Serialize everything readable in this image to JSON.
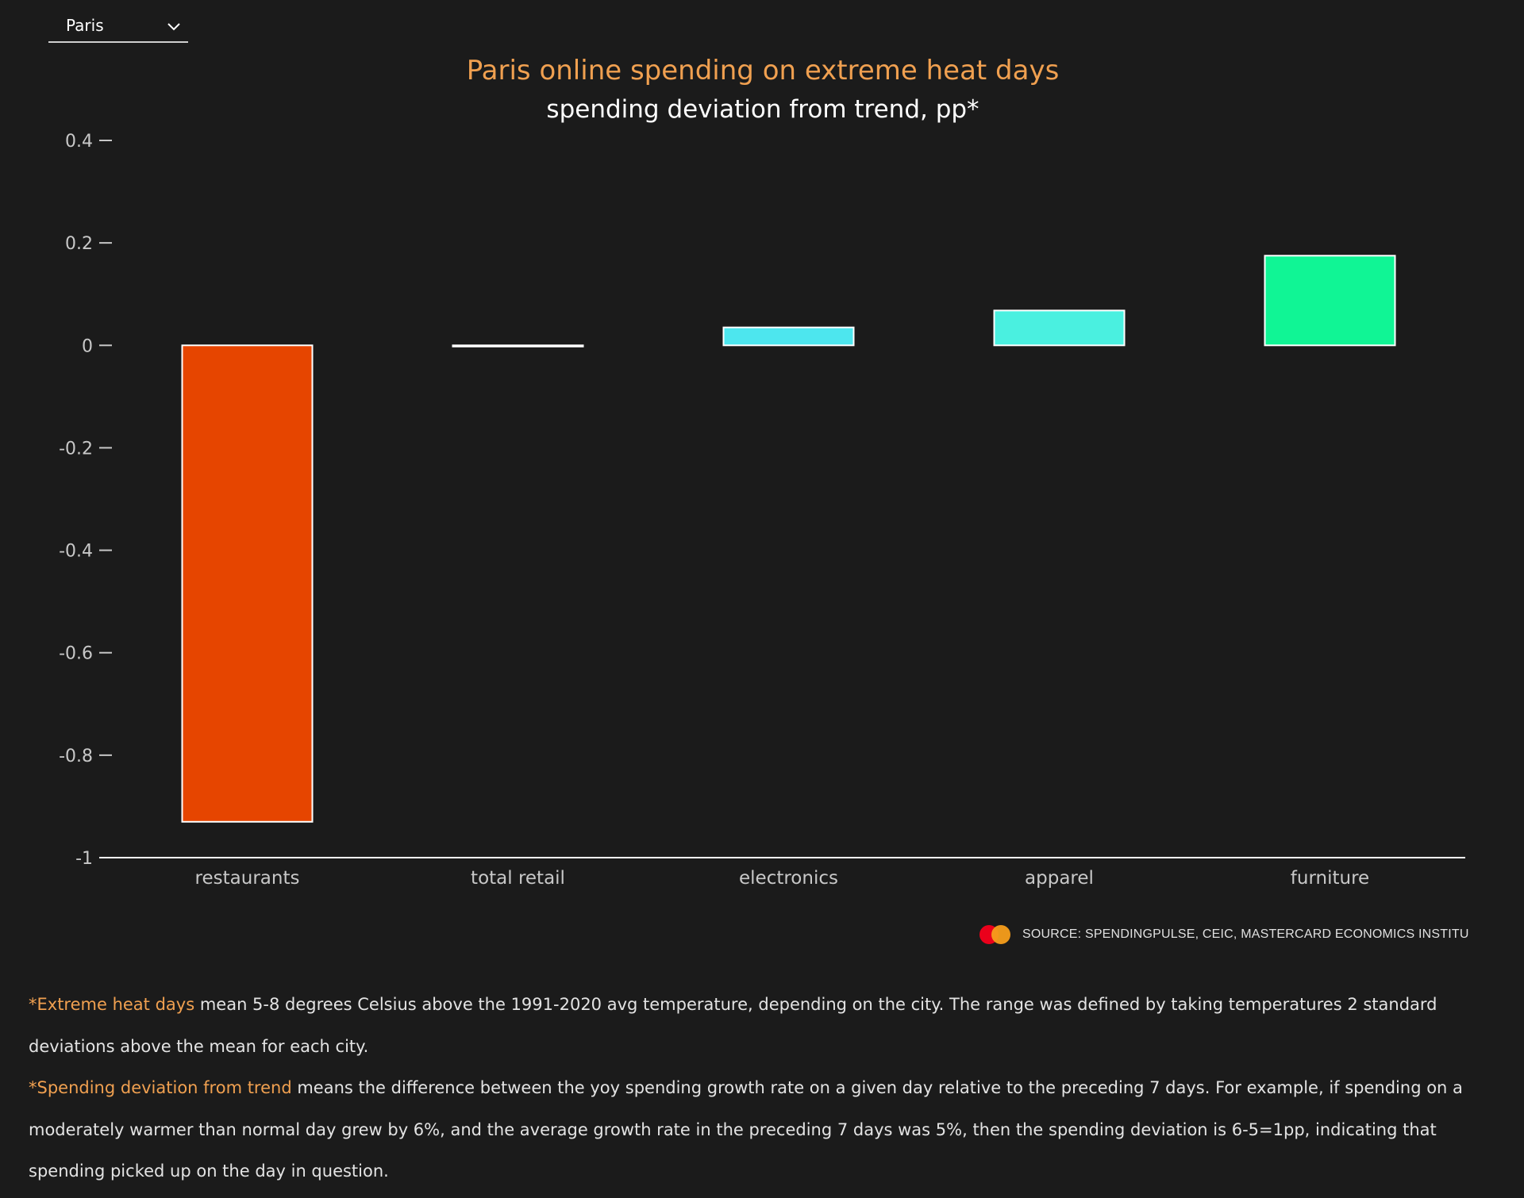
{
  "selector": {
    "value": "Paris"
  },
  "chart_data": {
    "type": "bar",
    "title": "Paris online spending on extreme heat days",
    "subtitle": "spending deviation from trend, pp*",
    "categories": [
      "restaurants",
      "total retail",
      "electronics",
      "apparel",
      "furniture"
    ],
    "values": [
      -0.93,
      0.0,
      0.035,
      0.068,
      0.175
    ],
    "colors": [
      "#e64500",
      "#ffffff",
      "#4de6ee",
      "#4af0e0",
      "#10f595"
    ],
    "ylim": [
      -1,
      0.4
    ],
    "yticks": [
      0.4,
      0.2,
      0,
      -0.2,
      -0.4,
      -0.6,
      -0.8,
      -1
    ],
    "ytick_labels": [
      "0.4",
      "0.2",
      "0",
      "-0.2",
      "-0.4",
      "-0.6",
      "-0.8",
      "-1"
    ],
    "xlabel": "",
    "ylabel": "",
    "grid": false,
    "title_color": "#f0a050"
  },
  "source": {
    "text": "SOURCE: SPENDINGPULSE, CEIC, MASTERCARD ECONOMICS INSTITU"
  },
  "notes": {
    "note1_highlight": "*Extreme heat days",
    "note1_text": " mean 5-8 degrees Celsius above the 1991-2020 avg temperature, depending on the city. The range was defined by taking temperatures 2 standard deviations above the mean for each city.",
    "note2_highlight": "*Spending deviation from trend",
    "note2_text": " means the difference between the yoy spending growth rate on a given day relative to the preceding 7 days. For example, if spending on a moderately warmer than normal day grew by 6%, and the average growth rate in the preceding 7 days was 5%, then the spending deviation is 6-5=1pp, indicating that spending picked up on the day in question."
  }
}
